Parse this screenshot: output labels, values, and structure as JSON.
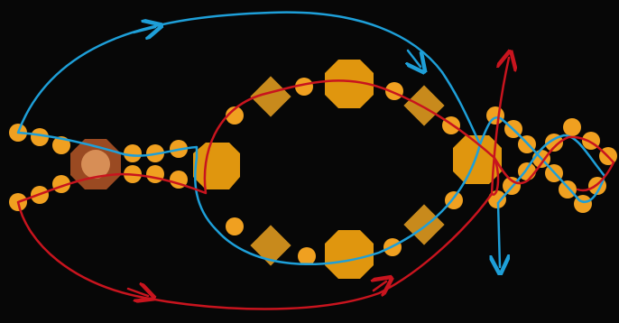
{
  "colors": {
    "background": "#070707",
    "bead_round": "#F0A020",
    "bead_octagon": "#E0960E",
    "bead_square": "#C88A1C",
    "bead_center_ring": "#9A4A22",
    "bead_center_fill": "#D78E56",
    "thread_blue": "#1E9FD8",
    "thread_red": "#C8141E"
  },
  "paths": [
    {
      "name": "blue-thread",
      "color_key": "thread_blue"
    },
    {
      "name": "red-thread",
      "color_key": "thread_red"
    }
  ]
}
